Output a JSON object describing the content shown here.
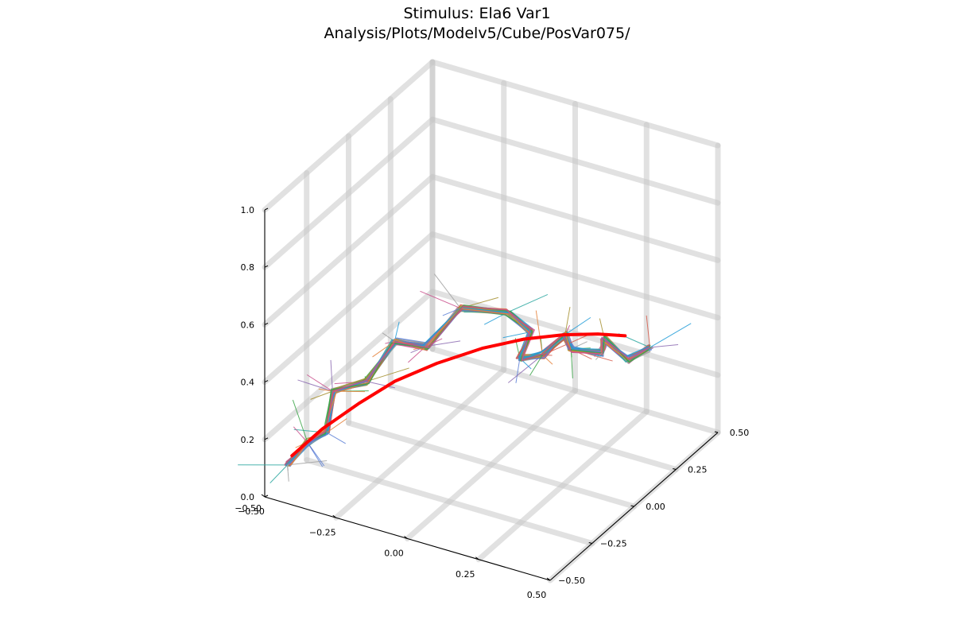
{
  "chart_data": {
    "type": "line",
    "projection": "3d",
    "title": "Stimulus: Ela6 Var1",
    "subtitle": "Analysis/Plots/Modelv5/Cube/PosVar075/",
    "xlabel": "",
    "ylabel": "",
    "zlabel": "",
    "xlim": [
      -0.5,
      0.5
    ],
    "ylim": [
      -0.5,
      0.5
    ],
    "zlim": [
      0.0,
      1.0
    ],
    "x_ticks": [
      "−0.50",
      "−0.25",
      "0.00",
      "0.25",
      "0.50"
    ],
    "y_ticks": [
      "−0.50",
      "−0.25",
      "0.00",
      "0.25",
      "0.50"
    ],
    "z_ticks": [
      "0.0",
      "0.2",
      "0.4",
      "0.6",
      "0.8",
      "1.0"
    ],
    "grid": true,
    "legend": "none",
    "reference_path": {
      "color": "#ff0000",
      "points": [
        [
          -0.44,
          -0.44,
          0.13
        ],
        [
          -0.38,
          -0.36,
          0.2
        ],
        [
          -0.3,
          -0.28,
          0.27
        ],
        [
          -0.22,
          -0.2,
          0.33
        ],
        [
          -0.12,
          -0.12,
          0.38
        ],
        [
          -0.02,
          -0.02,
          0.41
        ],
        [
          0.08,
          0.06,
          0.43
        ],
        [
          0.17,
          0.14,
          0.43
        ],
        [
          0.25,
          0.21,
          0.42
        ],
        [
          0.31,
          0.27,
          0.4
        ]
      ]
    },
    "series_colors": [
      "#1f9bd7",
      "#e4813a",
      "#3aa347",
      "#c94f8c",
      "#a0a0a0",
      "#8c6bb1",
      "#a58f2f",
      "#2ca7a0",
      "#d65a4a",
      "#5b7fd6"
    ],
    "trajectory": [
      [
        -0.45,
        -0.45,
        0.1
      ],
      [
        -0.42,
        -0.38,
        0.15
      ],
      [
        -0.4,
        -0.3,
        0.15
      ],
      [
        -0.38,
        -0.3,
        0.3
      ],
      [
        -0.32,
        -0.2,
        0.3
      ],
      [
        -0.28,
        -0.1,
        0.4
      ],
      [
        -0.2,
        -0.05,
        0.38
      ],
      [
        -0.12,
        0.02,
        0.5
      ],
      [
        0.0,
        0.1,
        0.48
      ],
      [
        0.05,
        0.15,
        0.4
      ],
      [
        0.1,
        0.0,
        0.4
      ],
      [
        0.15,
        0.05,
        0.4
      ],
      [
        0.2,
        0.1,
        0.46
      ],
      [
        0.25,
        0.05,
        0.45
      ],
      [
        0.3,
        0.15,
        0.4
      ],
      [
        0.25,
        0.25,
        0.38
      ],
      [
        0.3,
        0.3,
        0.3
      ],
      [
        0.35,
        0.35,
        0.33
      ]
    ]
  }
}
